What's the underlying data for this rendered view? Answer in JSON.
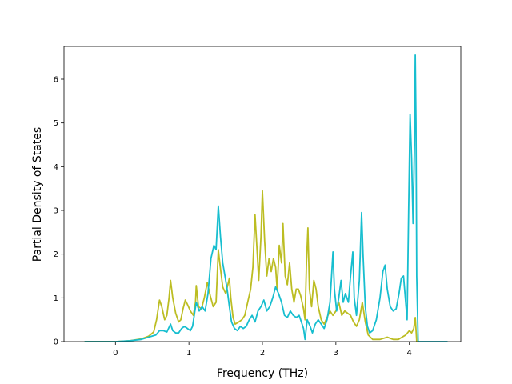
{
  "chart_data": {
    "type": "line",
    "xlabel": "Frequency (THz)",
    "ylabel": "Partial Density of States",
    "xlim": [
      -0.7,
      4.7
    ],
    "ylim": [
      0,
      6.75
    ],
    "xticks": [
      "0",
      "1",
      "2",
      "3",
      "4"
    ],
    "yticks": [
      "0",
      "1",
      "2",
      "3",
      "4",
      "5",
      "6"
    ],
    "grid": false,
    "legend": "none",
    "series": [
      {
        "color": "#bcbd22",
        "points": [
          [
            -0.42,
            0
          ],
          [
            0.0,
            0
          ],
          [
            0.2,
            0.02
          ],
          [
            0.35,
            0.06
          ],
          [
            0.45,
            0.12
          ],
          [
            0.52,
            0.22
          ],
          [
            0.56,
            0.5
          ],
          [
            0.6,
            0.95
          ],
          [
            0.63,
            0.8
          ],
          [
            0.67,
            0.5
          ],
          [
            0.7,
            0.6
          ],
          [
            0.73,
            1.0
          ],
          [
            0.75,
            1.4
          ],
          [
            0.78,
            1.0
          ],
          [
            0.82,
            0.65
          ],
          [
            0.86,
            0.45
          ],
          [
            0.89,
            0.5
          ],
          [
            0.92,
            0.75
          ],
          [
            0.95,
            0.95
          ],
          [
            0.98,
            0.85
          ],
          [
            1.02,
            0.7
          ],
          [
            1.06,
            0.6
          ],
          [
            1.09,
            0.9
          ],
          [
            1.1,
            1.28
          ],
          [
            1.13,
            0.8
          ],
          [
            1.17,
            0.75
          ],
          [
            1.21,
            1.0
          ],
          [
            1.25,
            1.35
          ],
          [
            1.29,
            1.05
          ],
          [
            1.33,
            0.8
          ],
          [
            1.37,
            0.9
          ],
          [
            1.4,
            2.1
          ],
          [
            1.42,
            1.8
          ],
          [
            1.46,
            1.25
          ],
          [
            1.5,
            1.1
          ],
          [
            1.53,
            1.3
          ],
          [
            1.55,
            1.45
          ],
          [
            1.57,
            1.0
          ],
          [
            1.6,
            0.55
          ],
          [
            1.63,
            0.4
          ],
          [
            1.68,
            0.45
          ],
          [
            1.72,
            0.5
          ],
          [
            1.76,
            0.6
          ],
          [
            1.8,
            0.9
          ],
          [
            1.84,
            1.2
          ],
          [
            1.87,
            1.7
          ],
          [
            1.9,
            2.9
          ],
          [
            1.93,
            2.0
          ],
          [
            1.95,
            1.4
          ],
          [
            1.98,
            2.4
          ],
          [
            2.0,
            3.45
          ],
          [
            2.03,
            2.3
          ],
          [
            2.06,
            1.5
          ],
          [
            2.09,
            1.9
          ],
          [
            2.12,
            1.6
          ],
          [
            2.15,
            1.9
          ],
          [
            2.18,
            1.7
          ],
          [
            2.2,
            1.2
          ],
          [
            2.23,
            2.2
          ],
          [
            2.26,
            1.8
          ],
          [
            2.28,
            2.7
          ],
          [
            2.31,
            1.5
          ],
          [
            2.34,
            1.3
          ],
          [
            2.37,
            1.8
          ],
          [
            2.4,
            1.2
          ],
          [
            2.43,
            0.9
          ],
          [
            2.46,
            1.2
          ],
          [
            2.49,
            1.2
          ],
          [
            2.52,
            1.05
          ],
          [
            2.56,
            0.75
          ],
          [
            2.58,
            0.5
          ],
          [
            2.6,
            1.8
          ],
          [
            2.62,
            2.6
          ],
          [
            2.64,
            1.2
          ],
          [
            2.67,
            0.8
          ],
          [
            2.7,
            1.4
          ],
          [
            2.73,
            1.2
          ],
          [
            2.76,
            0.8
          ],
          [
            2.8,
            0.5
          ],
          [
            2.84,
            0.4
          ],
          [
            2.88,
            0.55
          ],
          [
            2.92,
            0.7
          ],
          [
            2.96,
            0.6
          ],
          [
            3.0,
            0.7
          ],
          [
            3.04,
            0.9
          ],
          [
            3.08,
            0.6
          ],
          [
            3.12,
            0.7
          ],
          [
            3.16,
            0.65
          ],
          [
            3.2,
            0.6
          ],
          [
            3.24,
            0.45
          ],
          [
            3.28,
            0.35
          ],
          [
            3.32,
            0.5
          ],
          [
            3.36,
            0.9
          ],
          [
            3.4,
            0.45
          ],
          [
            3.44,
            0.15
          ],
          [
            3.5,
            0.05
          ],
          [
            3.6,
            0.05
          ],
          [
            3.7,
            0.1
          ],
          [
            3.78,
            0.05
          ],
          [
            3.85,
            0.05
          ],
          [
            3.9,
            0.1
          ],
          [
            3.95,
            0.15
          ],
          [
            4.0,
            0.25
          ],
          [
            4.03,
            0.2
          ],
          [
            4.06,
            0.3
          ],
          [
            4.08,
            0.55
          ],
          [
            4.1,
            0
          ]
        ]
      },
      {
        "color": "#17becf",
        "points": [
          [
            -0.42,
            0
          ],
          [
            0.0,
            0
          ],
          [
            0.2,
            0.02
          ],
          [
            0.35,
            0.05
          ],
          [
            0.45,
            0.1
          ],
          [
            0.55,
            0.15
          ],
          [
            0.6,
            0.25
          ],
          [
            0.65,
            0.25
          ],
          [
            0.7,
            0.22
          ],
          [
            0.75,
            0.4
          ],
          [
            0.78,
            0.25
          ],
          [
            0.82,
            0.2
          ],
          [
            0.86,
            0.2
          ],
          [
            0.9,
            0.3
          ],
          [
            0.94,
            0.35
          ],
          [
            0.98,
            0.3
          ],
          [
            1.02,
            0.25
          ],
          [
            1.05,
            0.35
          ],
          [
            1.1,
            0.9
          ],
          [
            1.14,
            0.7
          ],
          [
            1.18,
            0.8
          ],
          [
            1.22,
            0.7
          ],
          [
            1.26,
            1.1
          ],
          [
            1.3,
            1.9
          ],
          [
            1.34,
            2.2
          ],
          [
            1.37,
            2.1
          ],
          [
            1.4,
            3.1
          ],
          [
            1.43,
            2.4
          ],
          [
            1.46,
            1.8
          ],
          [
            1.49,
            1.5
          ],
          [
            1.52,
            1.2
          ],
          [
            1.55,
            0.8
          ],
          [
            1.58,
            0.45
          ],
          [
            1.62,
            0.3
          ],
          [
            1.66,
            0.25
          ],
          [
            1.7,
            0.35
          ],
          [
            1.74,
            0.3
          ],
          [
            1.78,
            0.35
          ],
          [
            1.82,
            0.5
          ],
          [
            1.86,
            0.6
          ],
          [
            1.9,
            0.45
          ],
          [
            1.94,
            0.7
          ],
          [
            1.98,
            0.8
          ],
          [
            2.02,
            0.95
          ],
          [
            2.06,
            0.7
          ],
          [
            2.1,
            0.8
          ],
          [
            2.14,
            1.0
          ],
          [
            2.18,
            1.25
          ],
          [
            2.22,
            1.1
          ],
          [
            2.26,
            0.9
          ],
          [
            2.3,
            0.6
          ],
          [
            2.34,
            0.55
          ],
          [
            2.38,
            0.7
          ],
          [
            2.42,
            0.6
          ],
          [
            2.46,
            0.55
          ],
          [
            2.5,
            0.6
          ],
          [
            2.53,
            0.45
          ],
          [
            2.56,
            0.3
          ],
          [
            2.58,
            0.05
          ],
          [
            2.61,
            0.5
          ],
          [
            2.65,
            0.35
          ],
          [
            2.68,
            0.2
          ],
          [
            2.72,
            0.4
          ],
          [
            2.76,
            0.5
          ],
          [
            2.8,
            0.4
          ],
          [
            2.84,
            0.3
          ],
          [
            2.88,
            0.5
          ],
          [
            2.92,
            0.9
          ],
          [
            2.96,
            2.05
          ],
          [
            2.98,
            1.2
          ],
          [
            3.01,
            0.7
          ],
          [
            3.04,
            1.0
          ],
          [
            3.07,
            1.4
          ],
          [
            3.1,
            0.9
          ],
          [
            3.13,
            1.1
          ],
          [
            3.17,
            0.9
          ],
          [
            3.2,
            1.5
          ],
          [
            3.23,
            2.05
          ],
          [
            3.25,
            1.0
          ],
          [
            3.28,
            0.6
          ],
          [
            3.32,
            1.4
          ],
          [
            3.35,
            2.95
          ],
          [
            3.37,
            2.0
          ],
          [
            3.4,
            0.8
          ],
          [
            3.43,
            0.35
          ],
          [
            3.46,
            0.2
          ],
          [
            3.5,
            0.25
          ],
          [
            3.55,
            0.5
          ],
          [
            3.6,
            1.0
          ],
          [
            3.64,
            1.6
          ],
          [
            3.67,
            1.75
          ],
          [
            3.7,
            1.2
          ],
          [
            3.74,
            0.8
          ],
          [
            3.78,
            0.7
          ],
          [
            3.82,
            0.75
          ],
          [
            3.86,
            1.1
          ],
          [
            3.89,
            1.45
          ],
          [
            3.92,
            1.5
          ],
          [
            3.95,
            0.9
          ],
          [
            3.97,
            0.5
          ],
          [
            3.99,
            3.0
          ],
          [
            4.01,
            5.2
          ],
          [
            4.03,
            4.2
          ],
          [
            4.05,
            2.7
          ],
          [
            4.07,
            4.5
          ],
          [
            4.08,
            6.55
          ],
          [
            4.09,
            5.0
          ],
          [
            4.1,
            1.5
          ],
          [
            4.12,
            0
          ],
          [
            4.52,
            0
          ]
        ]
      }
    ]
  }
}
